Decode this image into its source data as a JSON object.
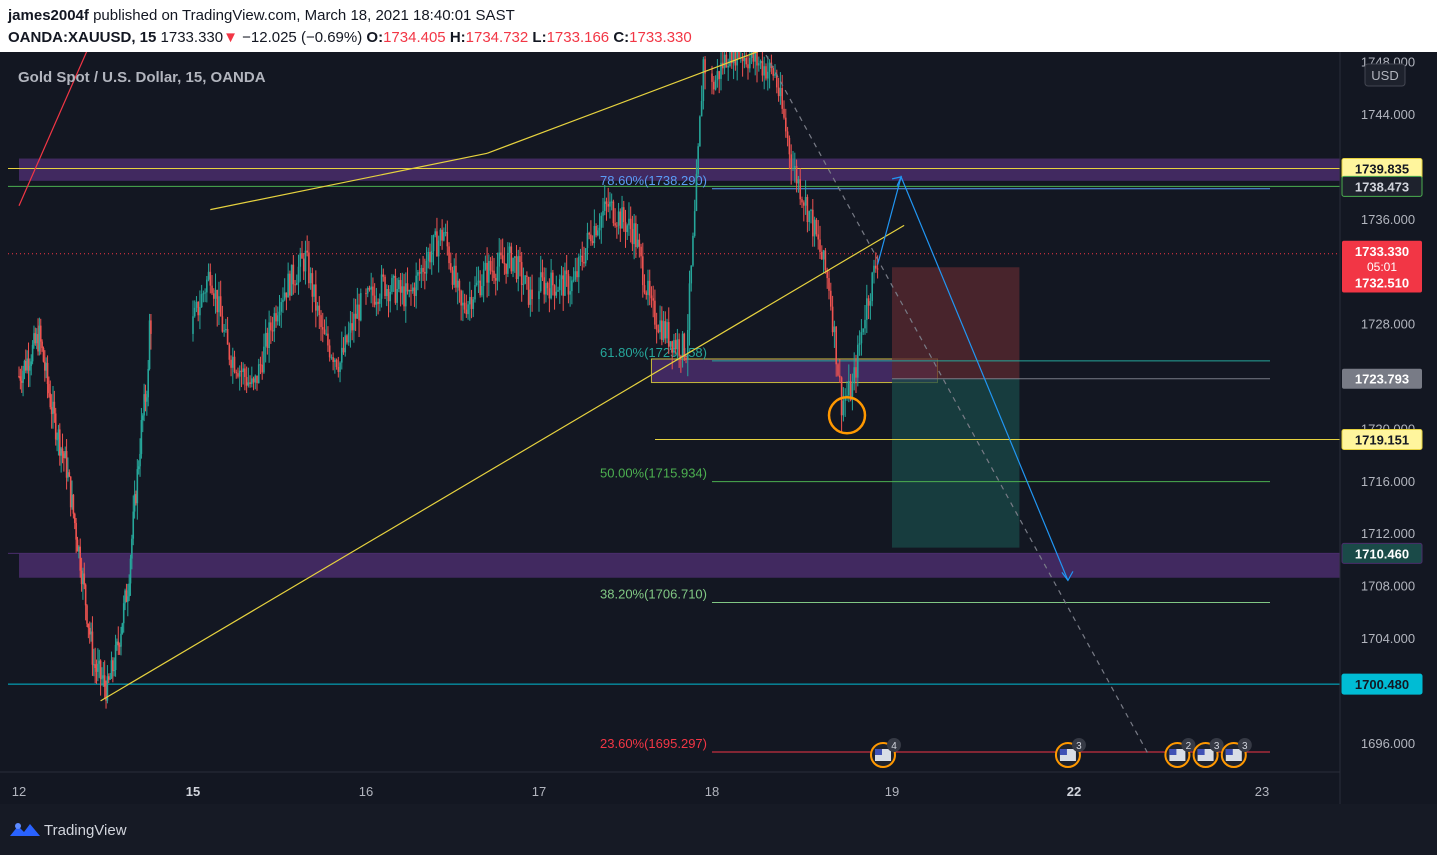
{
  "header": {
    "user": "james2004f",
    "published_text": "published on TradingView.com, March 18, 2021 18:40:01 SAST",
    "symbol": "OANDA:XAUUSD, 15",
    "last": "1733.330",
    "arrow": "▼",
    "change": "−12.025 (−0.69%)",
    "o_label": "O:",
    "o_value": "1734.405",
    "h_label": "H:",
    "h_value": "1734.732",
    "l_label": "L:",
    "l_value": "1733.166",
    "c_label": "C:",
    "c_value": "1733.330"
  },
  "footer": {
    "brand": "TradingView"
  },
  "colors": {
    "background": "#131722",
    "candle_up": "#26a69a",
    "candle_down": "#ef5350",
    "zone": "#4a2d6b",
    "trend": "#e6d23f",
    "projection": "#2196f3",
    "stop_zone": "#5b2a30",
    "target_zone": "#1a4a48"
  },
  "chart_data": {
    "type": "candlestick",
    "title": "Gold Spot / U.S. Dollar, 15, OANDA",
    "currency": "USD",
    "y_ticks": [
      "1748.000",
      "1744.000",
      "1736.000",
      "1728.000",
      "1720.000",
      "1716.000",
      "1712.000",
      "1708.000",
      "1704.000",
      "1696.000"
    ],
    "x_ticks": [
      {
        "label": "12",
        "day": 12
      },
      {
        "label": "15",
        "day": 15
      },
      {
        "label": "16",
        "day": 16
      },
      {
        "label": "17",
        "day": 17
      },
      {
        "label": "18",
        "day": 18
      },
      {
        "label": "19",
        "day": 19
      },
      {
        "label": "22",
        "day": 22
      },
      {
        "label": "23",
        "day": 23
      }
    ],
    "price_key_points": [
      {
        "day": 12.0,
        "price": 1724.0
      },
      {
        "day": 12.15,
        "price": 1727.0
      },
      {
        "day": 12.25,
        "price": 1721.0
      },
      {
        "day": 12.35,
        "price": 1717.0
      },
      {
        "day": 12.45,
        "price": 1710.0
      },
      {
        "day": 12.55,
        "price": 1702.0
      },
      {
        "day": 12.65,
        "price": 1700.0
      },
      {
        "day": 12.72,
        "price": 1703.0
      },
      {
        "day": 12.8,
        "price": 1708.0
      },
      {
        "day": 12.9,
        "price": 1720.0
      },
      {
        "day": 12.95,
        "price": 1724.0
      },
      {
        "day": 15.0,
        "price": 1728.0
      },
      {
        "day": 15.1,
        "price": 1732.0
      },
      {
        "day": 15.2,
        "price": 1726.0
      },
      {
        "day": 15.35,
        "price": 1723.0
      },
      {
        "day": 15.5,
        "price": 1730.0
      },
      {
        "day": 15.65,
        "price": 1733.0
      },
      {
        "day": 15.75,
        "price": 1727.0
      },
      {
        "day": 15.85,
        "price": 1725.0
      },
      {
        "day": 15.95,
        "price": 1729.0
      },
      {
        "day": 16.1,
        "price": 1731.0
      },
      {
        "day": 16.25,
        "price": 1730.0
      },
      {
        "day": 16.35,
        "price": 1733.0
      },
      {
        "day": 16.45,
        "price": 1735.0
      },
      {
        "day": 16.55,
        "price": 1729.0
      },
      {
        "day": 16.7,
        "price": 1732.0
      },
      {
        "day": 16.85,
        "price": 1733.0
      },
      {
        "day": 16.95,
        "price": 1730.0
      },
      {
        "day": 17.0,
        "price": 1731.0
      },
      {
        "day": 17.2,
        "price": 1731.0
      },
      {
        "day": 17.3,
        "price": 1735.0
      },
      {
        "day": 17.4,
        "price": 1737.0
      },
      {
        "day": 17.55,
        "price": 1735.0
      },
      {
        "day": 17.65,
        "price": 1729.0
      },
      {
        "day": 17.75,
        "price": 1727.0
      },
      {
        "day": 17.85,
        "price": 1726.0
      },
      {
        "day": 17.9,
        "price": 1736.0
      },
      {
        "day": 17.95,
        "price": 1748.0
      },
      {
        "day": 18.0,
        "price": 1746.0
      },
      {
        "day": 18.1,
        "price": 1749.0
      },
      {
        "day": 18.25,
        "price": 1748.0
      },
      {
        "day": 18.35,
        "price": 1747.0
      },
      {
        "day": 18.45,
        "price": 1740.0
      },
      {
        "day": 18.55,
        "price": 1736.0
      },
      {
        "day": 18.65,
        "price": 1731.0
      },
      {
        "day": 18.72,
        "price": 1722.0
      },
      {
        "day": 18.78,
        "price": 1723.0
      },
      {
        "day": 18.85,
        "price": 1729.0
      },
      {
        "day": 18.92,
        "price": 1733.0
      }
    ],
    "horizontal_lines": [
      {
        "price": 1739.835,
        "color": "#e6d23f",
        "tag": "1739.835"
      },
      {
        "price": 1738.473,
        "color": "#4caf50",
        "tag": "1738.473"
      },
      {
        "price": 1719.151,
        "color": "#e6d23f",
        "tag": "1719.151"
      },
      {
        "price": 1710.46,
        "color": "#4a2d6b",
        "tag": "1710.460"
      },
      {
        "price": 1700.48,
        "color": "#00bcd4",
        "tag": "1700.480"
      }
    ],
    "price_tags": [
      {
        "price": 1733.33,
        "label": "1733.330",
        "sub": "05:01",
        "bg": "#f23645",
        "fg": "#ffffff"
      },
      {
        "price": 1732.51,
        "label": "1732.510",
        "bg": "#f23645",
        "fg": "#ffffff"
      },
      {
        "price": 1723.793,
        "label": "1723.793",
        "bg": "#787b86",
        "fg": "#ffffff"
      }
    ],
    "zones": [
      {
        "from": 1738.9,
        "to": 1740.6,
        "day_from": 12.0,
        "day_to": 23.5
      },
      {
        "from": 1708.6,
        "to": 1710.46,
        "day_from": 12.0,
        "day_to": 23.5
      },
      {
        "from": 1723.5,
        "to": 1725.3,
        "day_from": 17.65,
        "day_to": 19.75
      }
    ],
    "fib_levels": [
      {
        "label": "78.60%(1738.290)",
        "price": 1738.29,
        "color": "#5b9cf6"
      },
      {
        "label": "61.80%(1725.158)",
        "price": 1725.158,
        "color": "#26a69a"
      },
      {
        "label": "50.00%(1715.934)",
        "price": 1715.934,
        "color": "#4caf50"
      },
      {
        "label": "38.20%(1706.710)",
        "price": 1706.71,
        "color": "#81c784"
      },
      {
        "label": "23.60%(1695.297)",
        "price": 1695.297,
        "color": "#f23645"
      }
    ],
    "trend_lines": [
      {
        "from": [
          15.1,
          1736.7
        ],
        "to": [
          16.7,
          1741.0
        ],
        "color": "#e6d23f"
      },
      {
        "from": [
          16.7,
          1741.0
        ],
        "to": [
          18.3,
          1749.0
        ],
        "color": "#e6d23f"
      },
      {
        "from": [
          12.6,
          1699.2
        ],
        "to": [
          19.2,
          1735.5
        ],
        "color": "#e6d23f"
      },
      {
        "from": [
          12.0,
          1737.0
        ],
        "to": [
          12.55,
          1750.0
        ],
        "color": "#f23645"
      }
    ],
    "projection_path": [
      [
        18.92,
        1732.5
      ],
      [
        19.15,
        1739.2
      ],
      [
        21.9,
        1708.4
      ]
    ],
    "dashed_trend": {
      "from": [
        18.3,
        1748.5
      ],
      "to": [
        22.4,
        1695.0
      ]
    },
    "risk_reward": {
      "day_from": 19.0,
      "day_to": 21.1,
      "stop_top": 1732.3,
      "entry": 1723.793,
      "target": 1710.9
    },
    "marker_circle": {
      "day": 18.75,
      "price": 1721.0
    },
    "event_icons": [
      {
        "day": 18.95,
        "count": "4"
      },
      {
        "day": 21.9,
        "count": "3"
      },
      {
        "day": 22.55,
        "count": "2"
      },
      {
        "day": 22.7,
        "count": "3"
      },
      {
        "day": 22.85,
        "count": "3"
      }
    ]
  }
}
